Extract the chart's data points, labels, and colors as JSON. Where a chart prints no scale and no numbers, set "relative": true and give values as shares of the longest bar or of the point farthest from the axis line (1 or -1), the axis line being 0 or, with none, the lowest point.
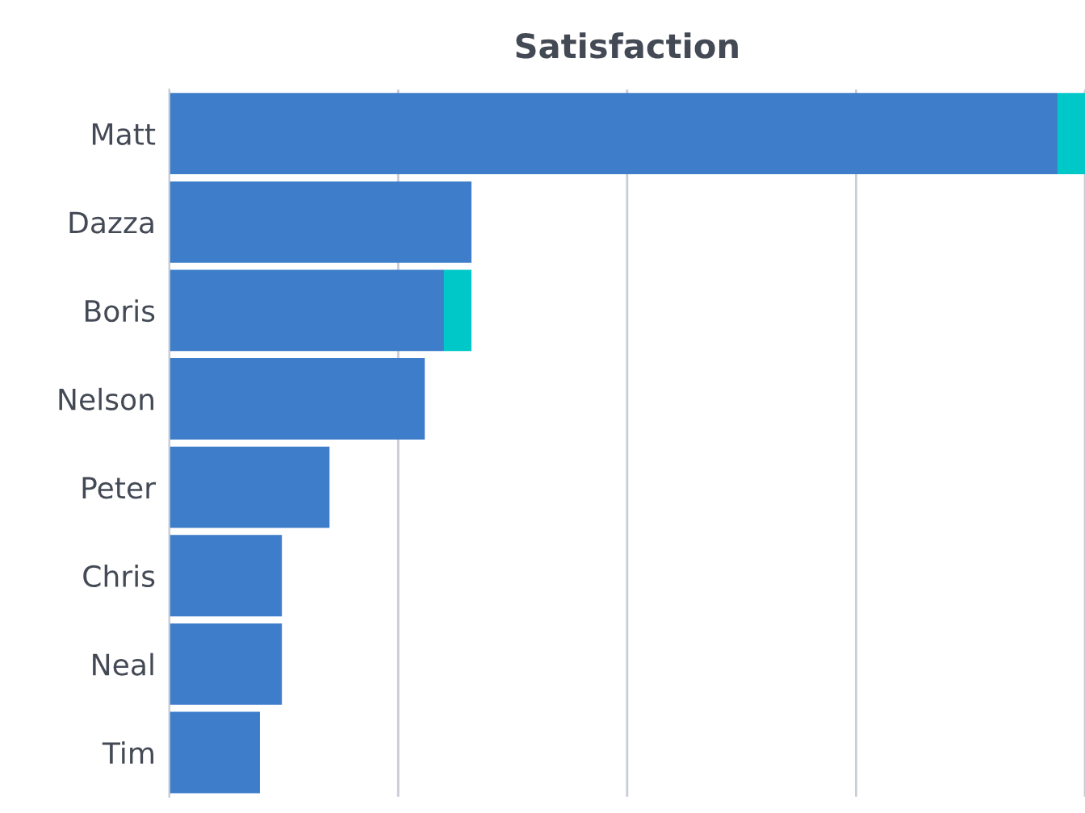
{
  "chart_data": {
    "type": "bar",
    "title": "Satisfaction",
    "orientation": "horizontal",
    "stacked": true,
    "relative": true,
    "grid": "x",
    "categories": [
      "Matt",
      "Dazza",
      "Boris",
      "Nelson",
      "Peter",
      "Chris",
      "Neal",
      "Tim"
    ],
    "series": [
      {
        "color": "#3d7dca",
        "values": [
          0.97,
          0.33,
          0.3,
          0.279,
          0.175,
          0.123,
          0.123,
          0.099
        ]
      },
      {
        "color": "#00c8c8",
        "values": [
          0.03,
          null,
          0.03,
          null,
          null,
          null,
          null,
          null
        ]
      }
    ]
  }
}
